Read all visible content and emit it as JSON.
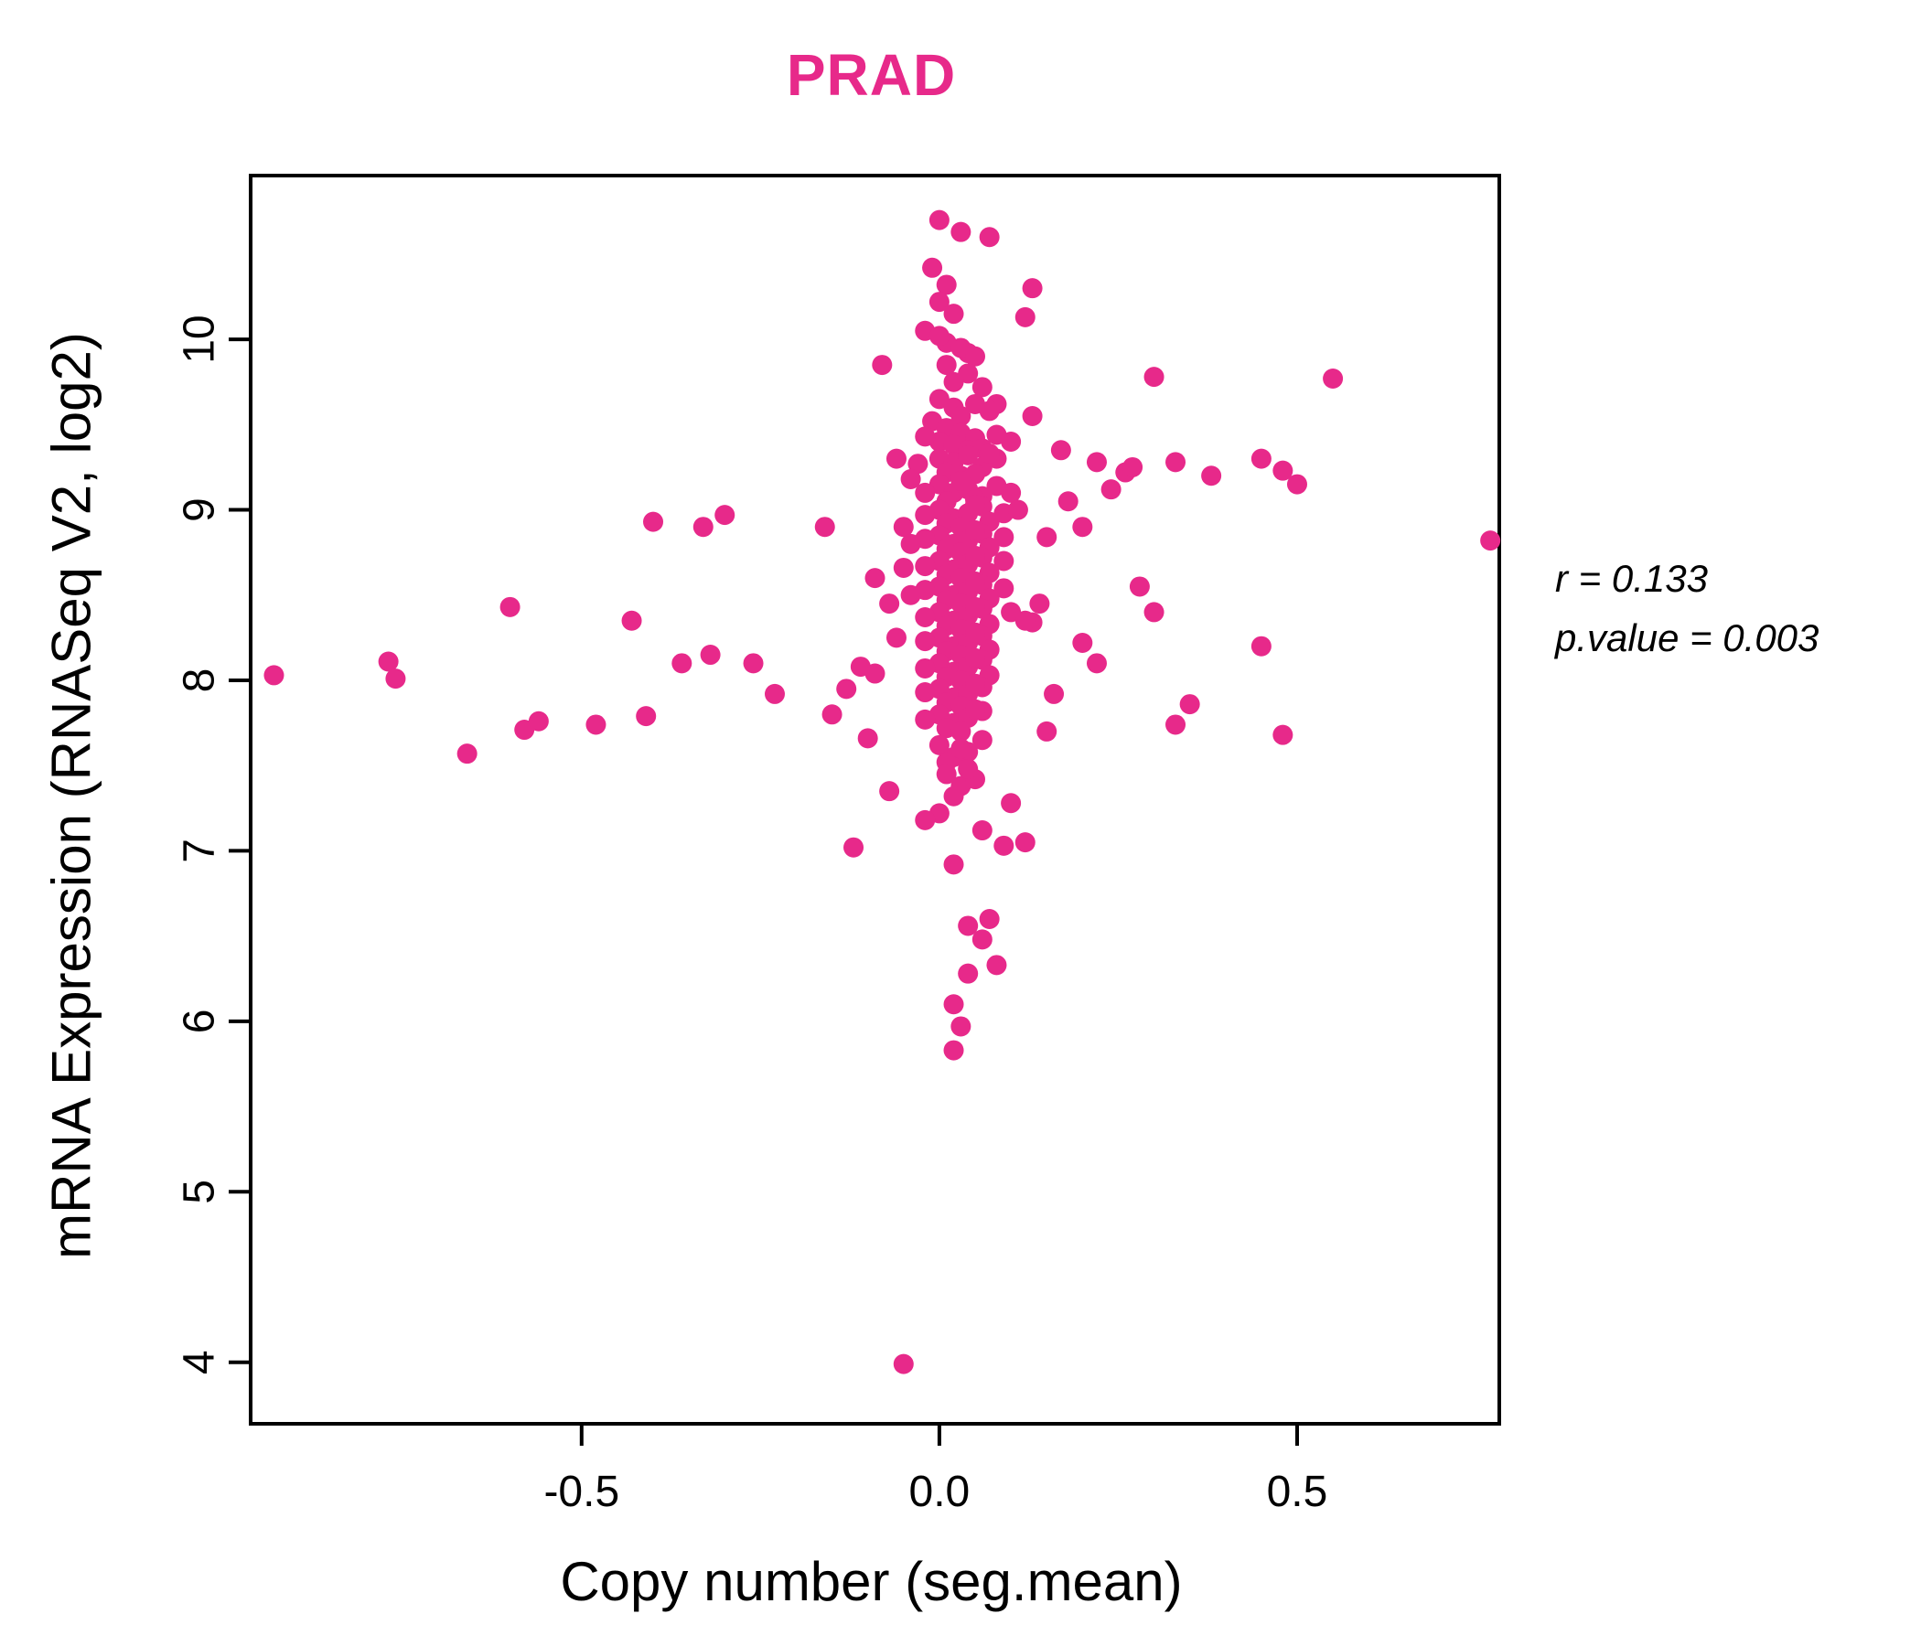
{
  "title": "PRAD",
  "accent_color": "#E7298A",
  "annotation": {
    "line1": "r = 0.133",
    "line2": "p.value = 0.003"
  },
  "chart_data": {
    "type": "scatter",
    "title": "PRAD",
    "xlabel": "Copy number (seg.mean)",
    "ylabel": "mRNA Expression (RNASeq V2, log2)",
    "xlim": [
      -0.96,
      0.78
    ],
    "ylim": [
      3.65,
      10.95
    ],
    "x_ticks": [
      -0.5,
      0.0,
      0.5
    ],
    "x_tick_labels": [
      "-0.5",
      "0.0",
      "0.5"
    ],
    "y_ticks": [
      4,
      5,
      6,
      7,
      8,
      9,
      10
    ],
    "y_tick_labels": [
      "4",
      "5",
      "6",
      "7",
      "8",
      "9",
      "10"
    ],
    "grid": false,
    "legend": "none",
    "point_color": "#E7298A",
    "stats": {
      "r": 0.133,
      "p_value": 0.003
    },
    "points": [
      [
        -0.93,
        8.03
      ],
      [
        -0.77,
        8.11
      ],
      [
        -0.76,
        8.01
      ],
      [
        -0.66,
        7.57
      ],
      [
        -0.6,
        8.43
      ],
      [
        -0.58,
        7.71
      ],
      [
        -0.56,
        7.76
      ],
      [
        -0.48,
        7.74
      ],
      [
        -0.43,
        8.35
      ],
      [
        -0.4,
        8.93
      ],
      [
        -0.41,
        7.79
      ],
      [
        -0.36,
        8.1
      ],
      [
        -0.33,
        8.9
      ],
      [
        -0.32,
        8.15
      ],
      [
        -0.3,
        8.97
      ],
      [
        -0.26,
        8.1
      ],
      [
        -0.23,
        7.92
      ],
      [
        -0.16,
        8.9
      ],
      [
        -0.15,
        7.8
      ],
      [
        -0.13,
        7.95
      ],
      [
        -0.11,
        8.08
      ],
      [
        -0.1,
        7.66
      ],
      [
        -0.09,
        8.04
      ],
      [
        -0.12,
        7.02
      ],
      [
        -0.07,
        7.35
      ],
      [
        -0.08,
        9.85
      ],
      [
        -0.06,
        9.3
      ],
      [
        -0.05,
        8.9
      ],
      [
        -0.09,
        8.6
      ],
      [
        -0.07,
        8.45
      ],
      [
        -0.06,
        8.25
      ],
      [
        -0.05,
        3.99
      ],
      [
        0.0,
        10.7
      ],
      [
        0.03,
        10.63
      ],
      [
        0.07,
        10.6
      ],
      [
        -0.01,
        10.42
      ],
      [
        0.01,
        10.32
      ],
      [
        0.13,
        10.3
      ],
      [
        0.12,
        10.13
      ],
      [
        0.0,
        10.22
      ],
      [
        0.02,
        10.15
      ],
      [
        -0.02,
        10.05
      ],
      [
        0.01,
        9.98
      ],
      [
        0.04,
        9.92
      ],
      [
        0.3,
        9.78
      ],
      [
        0.08,
        9.62
      ],
      [
        0.13,
        9.55
      ],
      [
        0.17,
        9.35
      ],
      [
        0.22,
        9.28
      ],
      [
        0.26,
        9.22
      ],
      [
        0.18,
        9.05
      ],
      [
        0.2,
        8.9
      ],
      [
        0.15,
        8.84
      ],
      [
        0.14,
        8.45
      ],
      [
        0.13,
        8.34
      ],
      [
        0.2,
        8.22
      ],
      [
        0.22,
        8.1
      ],
      [
        0.27,
        9.25
      ],
      [
        0.24,
        9.12
      ],
      [
        0.28,
        8.55
      ],
      [
        0.3,
        8.4
      ],
      [
        0.33,
        9.28
      ],
      [
        0.38,
        9.2
      ],
      [
        0.35,
        7.86
      ],
      [
        0.33,
        7.74
      ],
      [
        0.45,
        9.3
      ],
      [
        0.5,
        9.15
      ],
      [
        0.48,
        9.23
      ],
      [
        0.55,
        9.77
      ],
      [
        0.45,
        8.2
      ],
      [
        0.48,
        7.68
      ],
      [
        0.77,
        8.82
      ],
      [
        0.1,
        7.28
      ],
      [
        0.12,
        7.05
      ],
      [
        0.16,
        7.92
      ],
      [
        0.15,
        7.7
      ],
      [
        0.02,
        6.92
      ],
      [
        0.04,
        6.56
      ],
      [
        0.07,
        6.6
      ],
      [
        0.06,
        6.48
      ],
      [
        0.08,
        6.33
      ],
      [
        0.04,
        6.28
      ],
      [
        0.02,
        6.1
      ],
      [
        0.03,
        5.97
      ],
      [
        0.02,
        5.83
      ],
      [
        0.0,
        7.22
      ],
      [
        0.06,
        7.12
      ],
      [
        0.09,
        7.03
      ],
      [
        -0.02,
        7.18
      ],
      [
        0.0,
        10.02
      ],
      [
        0.03,
        9.95
      ],
      [
        0.05,
        9.9
      ],
      [
        0.01,
        9.85
      ],
      [
        0.04,
        9.8
      ],
      [
        0.02,
        9.75
      ],
      [
        0.06,
        9.72
      ],
      [
        0.0,
        9.65
      ],
      [
        0.02,
        9.6
      ],
      [
        0.05,
        9.62
      ],
      [
        0.03,
        9.55
      ],
      [
        0.07,
        9.58
      ],
      [
        -0.01,
        9.52
      ],
      [
        0.01,
        9.48
      ],
      [
        0.03,
        9.45
      ],
      [
        0.0,
        9.4
      ],
      [
        0.05,
        9.42
      ],
      [
        0.02,
        9.38
      ],
      [
        0.06,
        9.36
      ],
      [
        0.08,
        9.44
      ],
      [
        -0.02,
        9.43
      ],
      [
        0.04,
        9.35
      ],
      [
        0.1,
        9.4
      ],
      [
        0.0,
        9.3
      ],
      [
        0.02,
        9.28
      ],
      [
        0.04,
        9.32
      ],
      [
        0.01,
        9.22
      ],
      [
        0.06,
        9.25
      ],
      [
        0.03,
        9.2
      ],
      [
        -0.03,
        9.27
      ],
      [
        0.08,
        9.3
      ],
      [
        0.05,
        9.21
      ],
      [
        0.07,
        9.33
      ],
      [
        0.0,
        9.15
      ],
      [
        0.02,
        9.1
      ],
      [
        0.04,
        9.12
      ],
      [
        0.01,
        9.05
      ],
      [
        0.06,
        9.08
      ],
      [
        0.03,
        9.17
      ],
      [
        -0.02,
        9.1
      ],
      [
        0.08,
        9.14
      ],
      [
        0.05,
        9.06
      ],
      [
        -0.04,
        9.18
      ],
      [
        0.1,
        9.1
      ],
      [
        0.0,
        9.0
      ],
      [
        0.02,
        8.95
      ],
      [
        0.04,
        8.98
      ],
      [
        0.01,
        8.92
      ],
      [
        0.06,
        9.02
      ],
      [
        0.03,
        8.9
      ],
      [
        -0.02,
        8.97
      ],
      [
        0.07,
        8.93
      ],
      [
        0.05,
        9.03
      ],
      [
        0.09,
        8.98
      ],
      [
        0.11,
        9.0
      ],
      [
        0.0,
        8.85
      ],
      [
        0.02,
        8.8
      ],
      [
        0.04,
        8.82
      ],
      [
        0.01,
        8.77
      ],
      [
        0.06,
        8.86
      ],
      [
        0.03,
        8.75
      ],
      [
        -0.02,
        8.83
      ],
      [
        0.07,
        8.78
      ],
      [
        0.05,
        8.88
      ],
      [
        -0.04,
        8.8
      ],
      [
        0.09,
        8.84
      ],
      [
        0.0,
        8.7
      ],
      [
        0.02,
        8.65
      ],
      [
        0.04,
        8.68
      ],
      [
        0.01,
        8.62
      ],
      [
        0.06,
        8.72
      ],
      [
        0.03,
        8.6
      ],
      [
        -0.02,
        8.67
      ],
      [
        0.07,
        8.63
      ],
      [
        0.05,
        8.73
      ],
      [
        -0.05,
        8.66
      ],
      [
        0.09,
        8.7
      ],
      [
        0.0,
        8.55
      ],
      [
        0.02,
        8.5
      ],
      [
        0.04,
        8.52
      ],
      [
        0.01,
        8.47
      ],
      [
        0.06,
        8.56
      ],
      [
        0.03,
        8.45
      ],
      [
        -0.02,
        8.53
      ],
      [
        0.07,
        8.48
      ],
      [
        0.05,
        8.58
      ],
      [
        -0.04,
        8.5
      ],
      [
        0.09,
        8.54
      ],
      [
        0.0,
        8.4
      ],
      [
        0.02,
        8.35
      ],
      [
        0.04,
        8.38
      ],
      [
        0.01,
        8.32
      ],
      [
        0.06,
        8.42
      ],
      [
        0.03,
        8.3
      ],
      [
        -0.02,
        8.37
      ],
      [
        0.07,
        8.33
      ],
      [
        0.05,
        8.43
      ],
      [
        0.1,
        8.4
      ],
      [
        0.12,
        8.35
      ],
      [
        0.0,
        8.25
      ],
      [
        0.02,
        8.2
      ],
      [
        0.04,
        8.22
      ],
      [
        0.01,
        8.17
      ],
      [
        0.06,
        8.26
      ],
      [
        0.03,
        8.15
      ],
      [
        -0.02,
        8.23
      ],
      [
        0.07,
        8.18
      ],
      [
        0.05,
        8.28
      ],
      [
        0.0,
        8.1
      ],
      [
        0.02,
        8.05
      ],
      [
        0.04,
        8.08
      ],
      [
        0.01,
        8.02
      ],
      [
        0.06,
        8.12
      ],
      [
        0.03,
        8.0
      ],
      [
        -0.02,
        8.07
      ],
      [
        0.07,
        8.03
      ],
      [
        0.05,
        8.13
      ],
      [
        0.0,
        7.95
      ],
      [
        0.02,
        7.9
      ],
      [
        0.04,
        7.92
      ],
      [
        0.01,
        7.87
      ],
      [
        0.06,
        7.96
      ],
      [
        0.03,
        7.85
      ],
      [
        -0.02,
        7.93
      ],
      [
        0.05,
        7.98
      ],
      [
        0.0,
        7.8
      ],
      [
        0.02,
        7.75
      ],
      [
        0.04,
        7.78
      ],
      [
        0.01,
        7.72
      ],
      [
        0.06,
        7.82
      ],
      [
        0.03,
        7.7
      ],
      [
        -0.02,
        7.77
      ],
      [
        0.05,
        7.83
      ],
      [
        0.0,
        7.62
      ],
      [
        0.02,
        7.55
      ],
      [
        0.04,
        7.58
      ],
      [
        0.01,
        7.52
      ],
      [
        0.06,
        7.65
      ],
      [
        0.03,
        7.6
      ],
      [
        0.01,
        7.45
      ],
      [
        0.03,
        7.38
      ],
      [
        0.05,
        7.42
      ],
      [
        0.02,
        7.32
      ],
      [
        0.04,
        7.48
      ]
    ]
  }
}
